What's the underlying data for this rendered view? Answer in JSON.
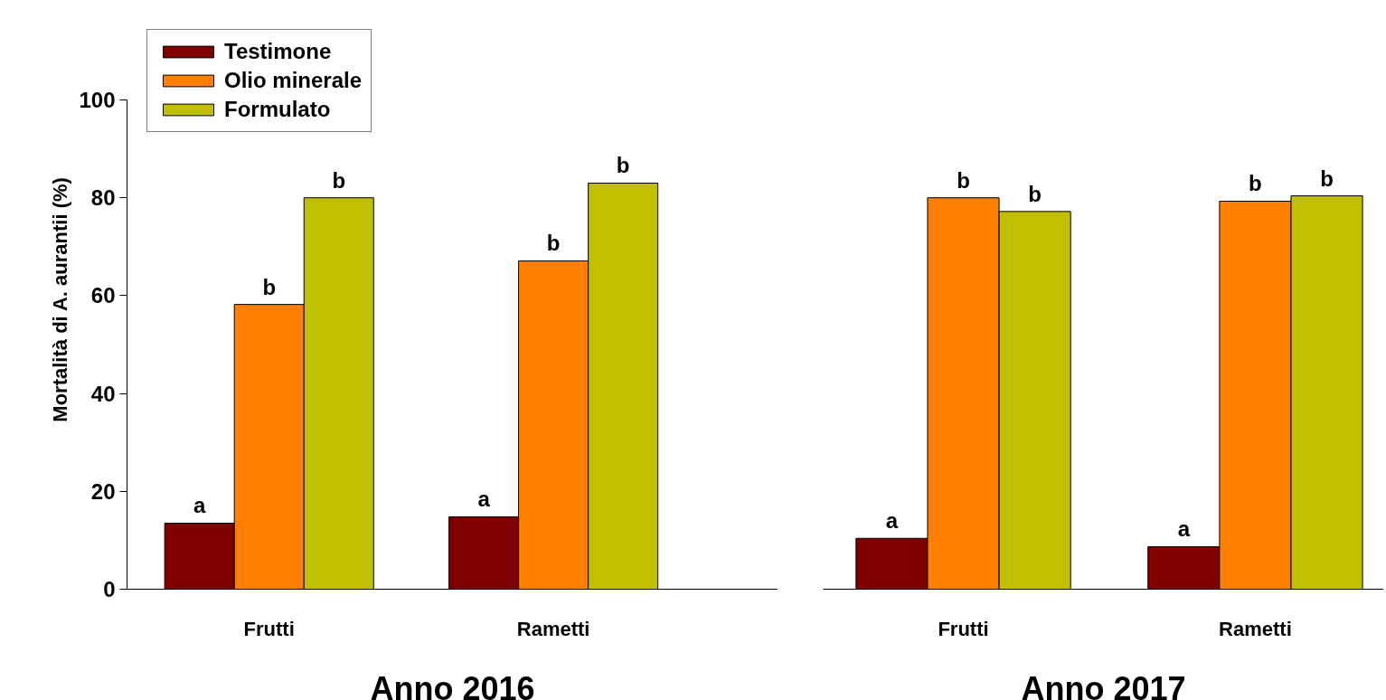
{
  "chart_data": [
    {
      "type": "bar",
      "categories": [
        "Frutti",
        "Rametti"
      ],
      "xlabel": "Anno 2016",
      "ylabel": "Mortalità di A. aurantii (%)",
      "ylim": [
        0,
        100
      ],
      "yticks": [
        0,
        20,
        40,
        60,
        80,
        100
      ],
      "legend": "top left",
      "series": [
        {
          "name": "Testimone",
          "color": "#800000",
          "values": [
            13.5,
            14.8
          ],
          "value_labels": [
            "a",
            "a"
          ]
        },
        {
          "name": "Olio minerale",
          "color": "#ff8000",
          "values": [
            58.2,
            67.1
          ],
          "value_labels": [
            "b",
            "b"
          ]
        },
        {
          "name": "Formulato",
          "color": "#c0c000",
          "values": [
            80.0,
            83.0
          ],
          "value_labels": [
            "b",
            "b"
          ]
        }
      ]
    },
    {
      "type": "bar",
      "categories": [
        "Frutti",
        "Rametti"
      ],
      "xlabel": "Anno 2017",
      "ylim": [
        0,
        100
      ],
      "yticks": [
        0,
        20,
        40,
        60,
        80,
        100
      ],
      "tick_labels": "x",
      "series": [
        {
          "color": "#800000",
          "values": [
            10.4,
            8.7
          ],
          "value_labels": [
            "a",
            "a"
          ]
        },
        {
          "color": "#ff8000",
          "values": [
            80.0,
            79.3
          ],
          "value_labels": [
            "b",
            "b"
          ]
        },
        {
          "color": "#c0c000",
          "values": [
            77.2,
            80.4
          ],
          "value_labels": [
            "b",
            "b"
          ]
        }
      ]
    }
  ]
}
